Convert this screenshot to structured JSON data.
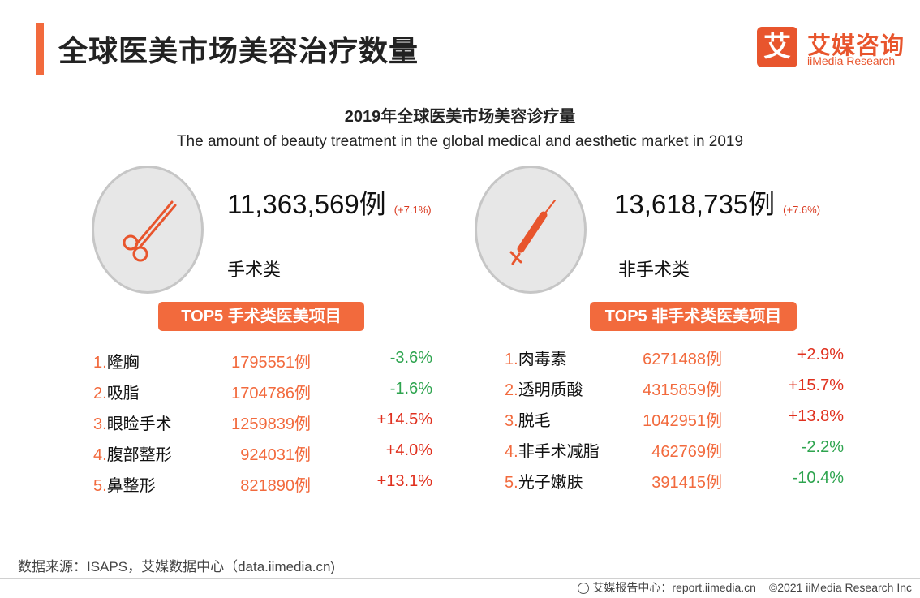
{
  "header": {
    "title": "全球医美市场美容治疗数量",
    "logo_mark": "艾",
    "logo_cn": "艾媒咨询",
    "logo_en": "iiMedia Research"
  },
  "subtitle": {
    "cn": "2019年全球医美市场美容诊疗量",
    "en": "The amount of beauty treatment in the global medical and aesthetic market in 2019"
  },
  "surgical": {
    "icon": "scissors-icon",
    "total": "11,363,569例",
    "change": "(+7.1%)",
    "label": "手术类",
    "top5_title": "TOP5 手术类医美项目",
    "items": [
      {
        "rank": "1.",
        "name": "隆胸",
        "count": "1795551例",
        "change": "-3.6%"
      },
      {
        "rank": "2.",
        "name": "吸脂",
        "count": "1704786例",
        "change": "-1.6%"
      },
      {
        "rank": "3.",
        "name": "眼睑手术",
        "count": "1259839例",
        "change": "+14.5%"
      },
      {
        "rank": "4.",
        "name": "腹部整形",
        "count": "924031例",
        "change": "+4.0%"
      },
      {
        "rank": "5.",
        "name": "鼻整形",
        "count": "821890例",
        "change": "+13.1%"
      }
    ]
  },
  "non_surgical": {
    "icon": "syringe-icon",
    "total": "13,618,735例",
    "change": "(+7.6%)",
    "label": "非手术类",
    "top5_title": "TOP5 非手术类医美项目",
    "items": [
      {
        "rank": "1.",
        "name": "肉毒素",
        "count": "6271488例",
        "change": "+2.9%"
      },
      {
        "rank": "2.",
        "name": "透明质酸",
        "count": "4315859例",
        "change": "+15.7%"
      },
      {
        "rank": "3.",
        "name": "脱毛",
        "count": "1042951例",
        "change": "+13.8%"
      },
      {
        "rank": "4.",
        "name": "非手术减脂",
        "count": "462769例",
        "change": "-2.2%"
      },
      {
        "rank": "5.",
        "name": "光子嫩肤",
        "count": "391415例",
        "change": "-10.4%"
      }
    ]
  },
  "colors": {
    "accent": "#f26a3d",
    "increase": "#e0301e",
    "decrease": "#2ea44f"
  },
  "source": "数据来源：ISAPS，艾媒数据中心（data.iimedia.cn)",
  "footer": {
    "site": "艾媒报告中心：report.iimedia.cn",
    "copyright": "©2021  iiMedia Research  Inc"
  }
}
